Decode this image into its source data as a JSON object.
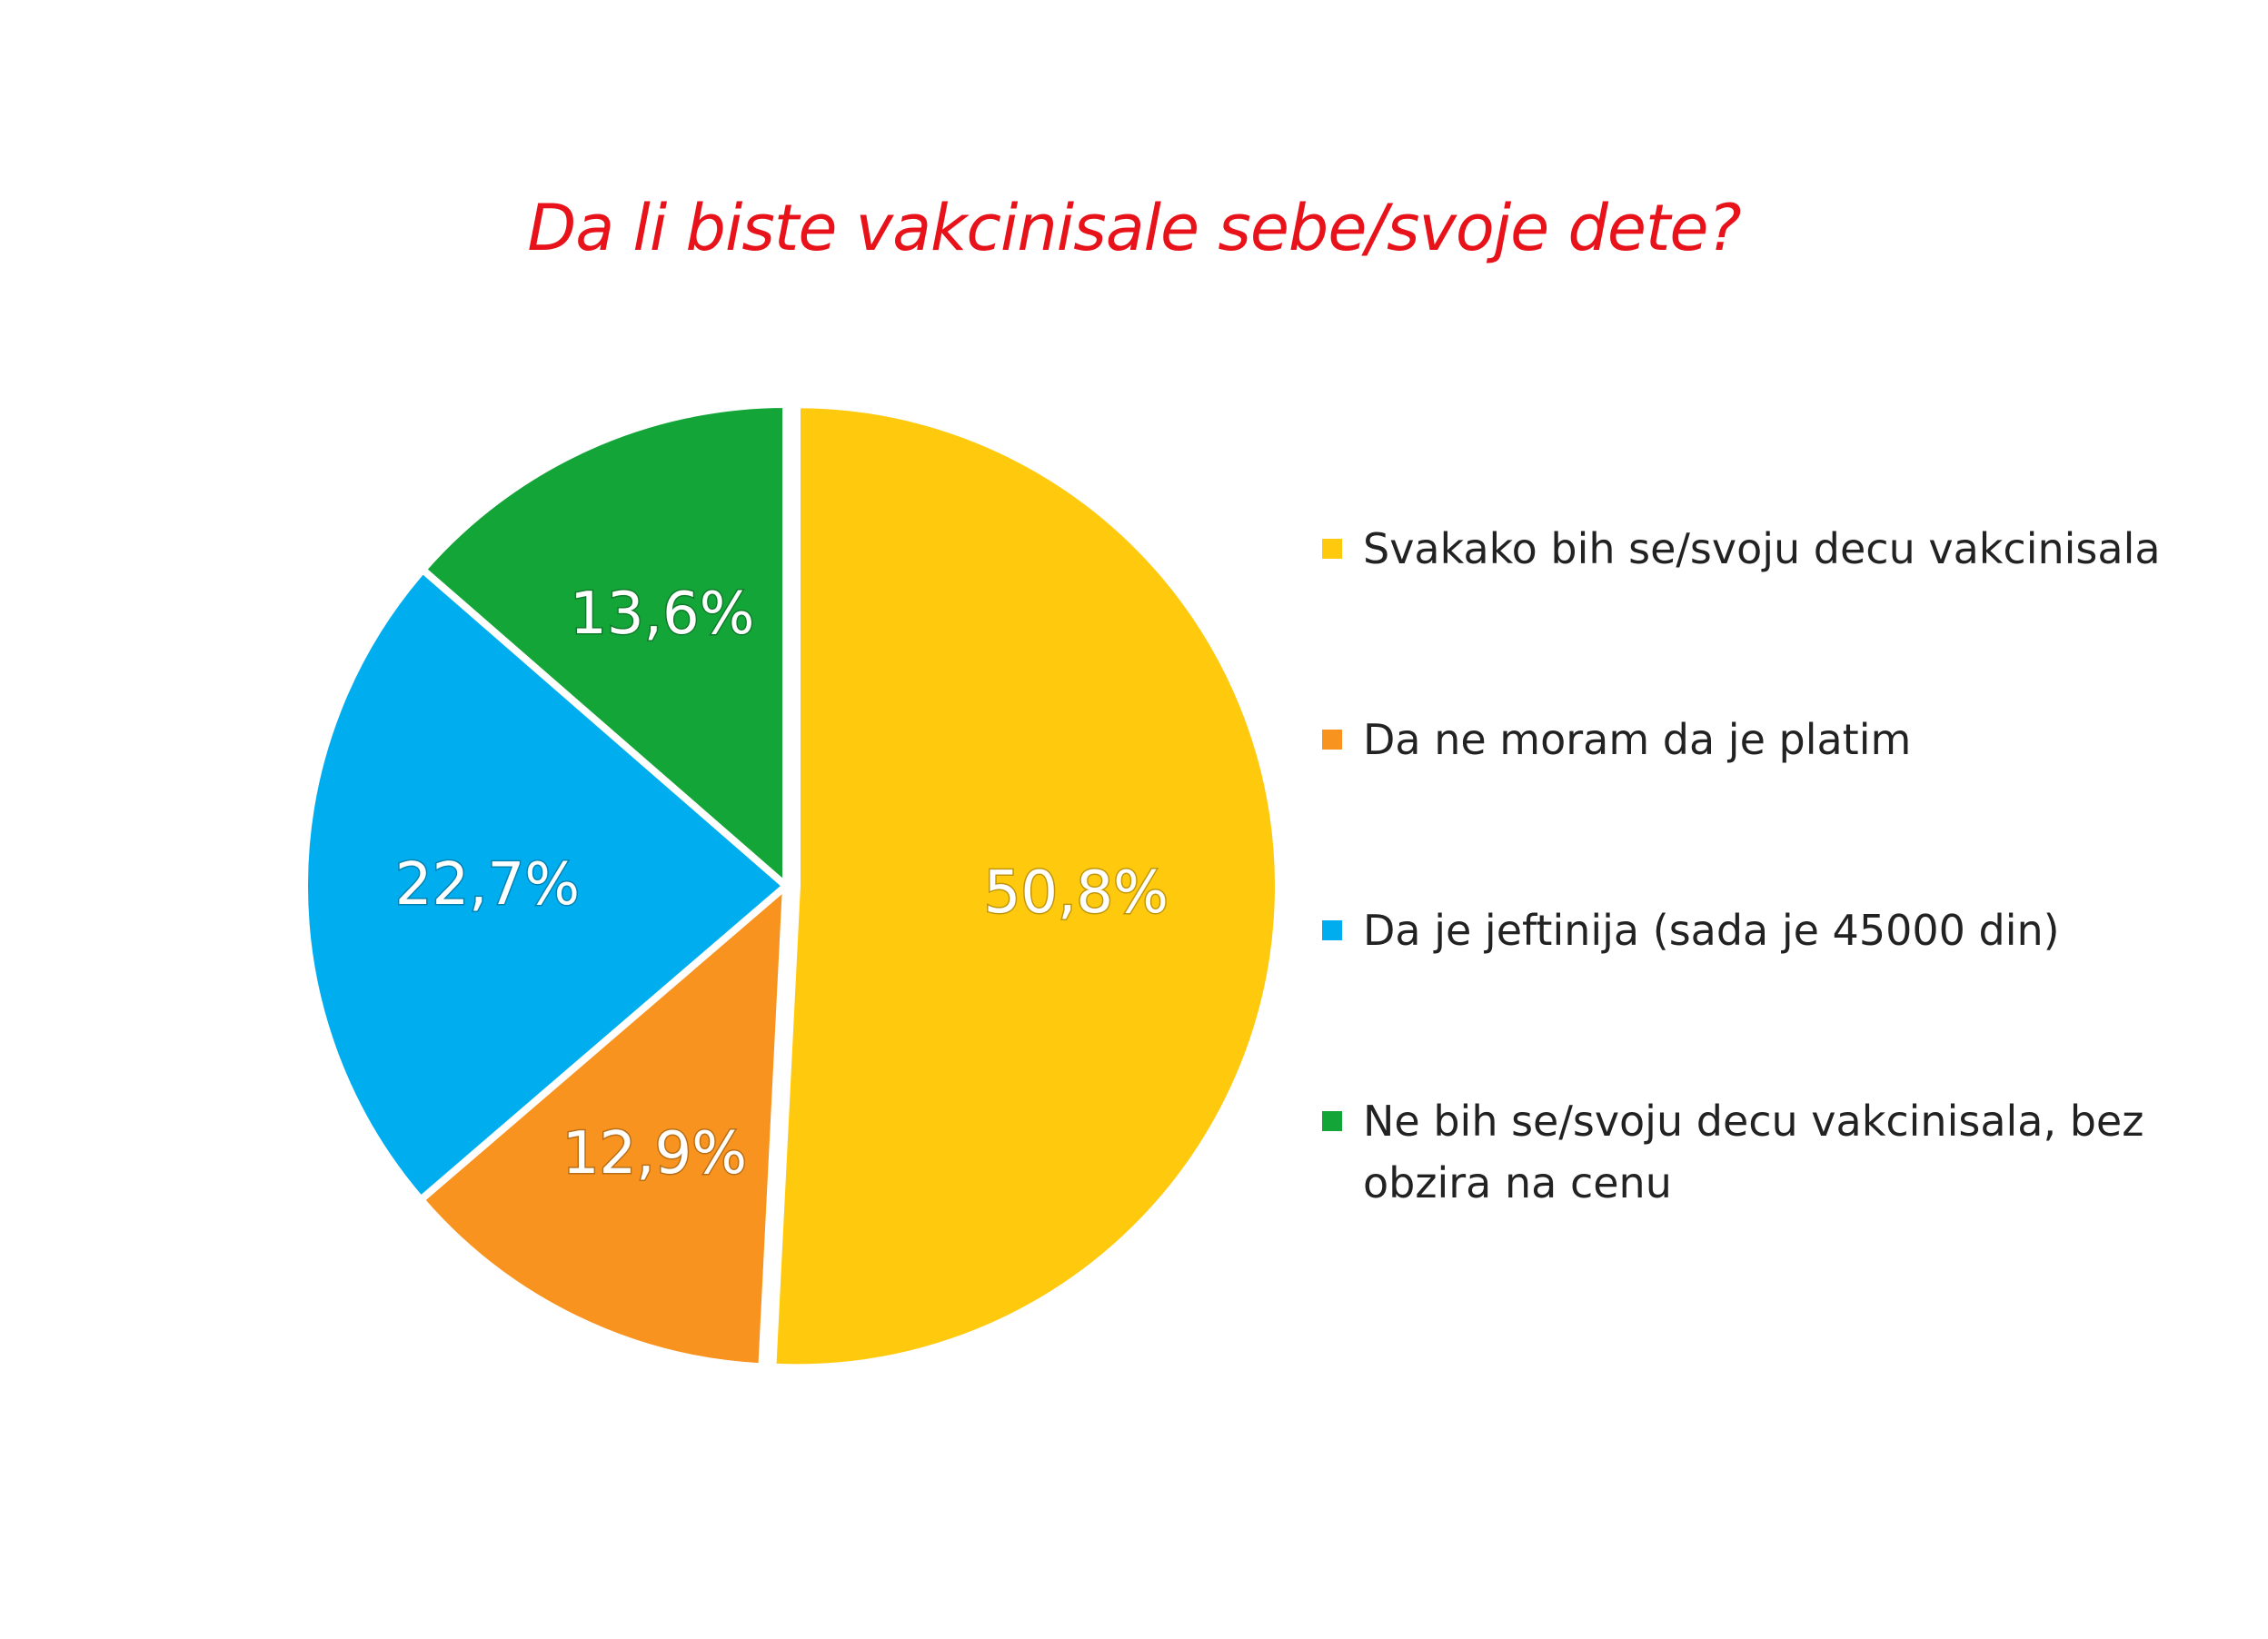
{
  "chart_data": {
    "type": "pie",
    "title": "Da li biste vakcinisale sebe/svoje dete?",
    "categories": [
      "Svakako bih se/svoju decu vakcinisala",
      "Da ne moram da je platim",
      "Da je jeftinija (sada je 45000 din)",
      "Ne bih se/svoju decu vakcinisala, bez obzira na cenu"
    ],
    "values": [
      50.8,
      12.9,
      22.7,
      13.6
    ],
    "value_labels": [
      "50,8%",
      "12,9%",
      "22,7%",
      "13,6%"
    ],
    "colors": [
      "#ffc90e",
      "#f7931e",
      "#00aeef",
      "#13a538"
    ],
    "legend_position": "right",
    "explode_first": true
  }
}
